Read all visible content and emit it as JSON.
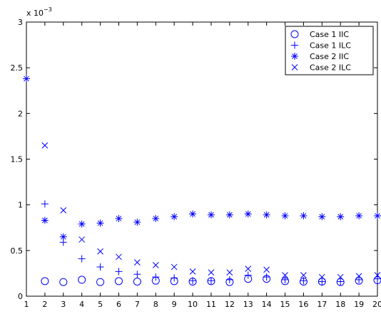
{
  "chart_data": {
    "type": "scatter",
    "scale_label": "x 10",
    "scale_exponent": "−3",
    "xlim": [
      1,
      20
    ],
    "ylim": [
      0,
      3
    ],
    "x_ticks": [
      "1",
      "2",
      "3",
      "4",
      "5",
      "6",
      "7",
      "8",
      "9",
      "10",
      "11",
      "12",
      "13",
      "14",
      "15",
      "16",
      "17",
      "18",
      "19",
      "20"
    ],
    "y_ticks": [
      "0",
      "0.5",
      "1",
      "1.5",
      "2",
      "2.5",
      "3"
    ],
    "y_tick_values": [
      0,
      0.5,
      1,
      1.5,
      2,
      2.5,
      3
    ],
    "grid": false,
    "legend_position": "top-right",
    "color": "#0000ff",
    "series": [
      {
        "name": "Case 1 IIC",
        "marker": "circle",
        "x": [
          2,
          3,
          4,
          5,
          6,
          7,
          8,
          9,
          10,
          11,
          12,
          13,
          14,
          15,
          16,
          17,
          18,
          19,
          20
        ],
        "y": [
          0.165,
          0.155,
          0.18,
          0.155,
          0.165,
          0.16,
          0.17,
          0.165,
          0.16,
          0.165,
          0.155,
          0.19,
          0.19,
          0.165,
          0.16,
          0.16,
          0.155,
          0.17,
          0.175
        ]
      },
      {
        "name": "Case 1 ILC",
        "marker": "plus",
        "x": [
          2,
          3,
          4,
          5,
          6,
          7,
          8,
          9,
          10,
          11,
          12,
          13,
          14,
          15,
          16,
          17,
          18,
          19,
          20
        ],
        "y": [
          1.01,
          0.59,
          0.41,
          0.32,
          0.27,
          0.24,
          0.21,
          0.2,
          0.17,
          0.17,
          0.18,
          0.23,
          0.21,
          0.18,
          0.17,
          0.16,
          0.16,
          0.18,
          0.19
        ]
      },
      {
        "name": "Case 2 IIC",
        "marker": "star",
        "x": [
          1,
          2,
          3,
          4,
          5,
          6,
          7,
          8,
          9,
          10,
          11,
          12,
          13,
          14,
          15,
          16,
          17,
          18,
          19,
          20
        ],
        "y": [
          2.38,
          0.83,
          0.65,
          0.79,
          0.8,
          0.85,
          0.81,
          0.85,
          0.87,
          0.9,
          0.89,
          0.89,
          0.9,
          0.89,
          0.88,
          0.88,
          0.87,
          0.87,
          0.88,
          0.88
        ]
      },
      {
        "name": "Case 2 ILC",
        "marker": "x",
        "x": [
          2,
          3,
          4,
          5,
          6,
          7,
          8,
          9,
          10,
          11,
          12,
          13,
          14,
          15,
          16,
          17,
          18,
          19,
          20
        ],
        "y": [
          1.65,
          0.94,
          0.62,
          0.49,
          0.43,
          0.37,
          0.34,
          0.32,
          0.27,
          0.26,
          0.26,
          0.3,
          0.29,
          0.23,
          0.23,
          0.21,
          0.21,
          0.22,
          0.23
        ]
      }
    ]
  }
}
